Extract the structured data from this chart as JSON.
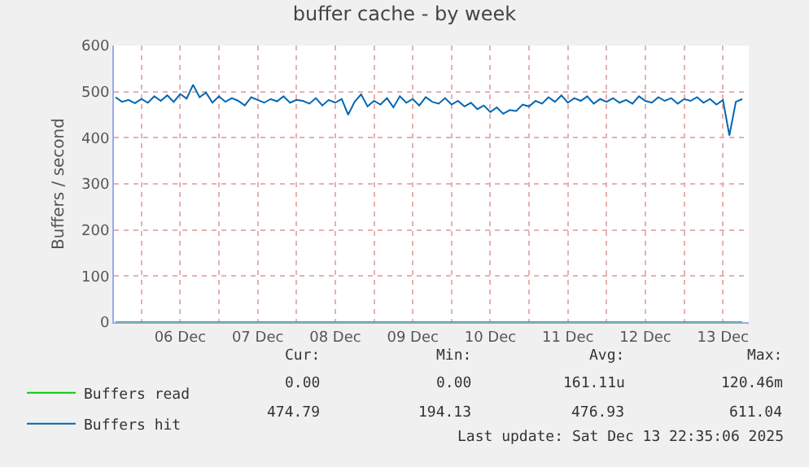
{
  "chart_data": {
    "type": "line",
    "title": "buffer cache - by week",
    "ylabel": "Buffers / second",
    "xlim": [
      "2025-12-05T15:30",
      "2025-12-13T20:00"
    ],
    "xticks": [
      {
        "value": "2025-12-06",
        "label": null
      },
      {
        "value": "2025-12-06T12:00",
        "label": "06 Dec"
      },
      {
        "value": "2025-12-07",
        "label": null
      },
      {
        "value": "2025-12-07T12:00",
        "label": "07 Dec"
      },
      {
        "value": "2025-12-08",
        "label": null
      },
      {
        "value": "2025-12-08T12:00",
        "label": "08 Dec"
      },
      {
        "value": "2025-12-09",
        "label": null
      },
      {
        "value": "2025-12-09T12:00",
        "label": "09 Dec"
      },
      {
        "value": "2025-12-10",
        "label": null
      },
      {
        "value": "2025-12-10T12:00",
        "label": "10 Dec"
      },
      {
        "value": "2025-12-11",
        "label": null
      },
      {
        "value": "2025-12-11T12:00",
        "label": "11 Dec"
      },
      {
        "value": "2025-12-12",
        "label": null
      },
      {
        "value": "2025-12-12T12:00",
        "label": "12 Dec"
      },
      {
        "value": "2025-12-13",
        "label": null
      },
      {
        "value": "2025-12-13T12:00",
        "label": "13 Dec"
      }
    ],
    "ylim": [
      0,
      600
    ],
    "yticks": [
      0,
      100,
      200,
      300,
      400,
      500,
      600
    ],
    "grid": true,
    "legend": "bottom left",
    "line_style": "solid",
    "marker": "none",
    "series": [
      {
        "name": "Buffers read",
        "color": "#00cc00",
        "x": [
          "2025-12-05T16:00",
          "2025-12-13T18:00"
        ],
        "values": [
          0,
          0
        ]
      },
      {
        "name": "Buffers hit",
        "color": "#0066b3",
        "x": [
          "2025-12-05T16:00",
          "2025-12-05T18:00",
          "2025-12-05T20:00",
          "2025-12-05T22:00",
          "2025-12-06T00:00",
          "2025-12-06T02:00",
          "2025-12-06T04:00",
          "2025-12-06T06:00",
          "2025-12-06T08:00",
          "2025-12-06T10:00",
          "2025-12-06T12:00",
          "2025-12-06T14:00",
          "2025-12-06T16:00",
          "2025-12-06T18:00",
          "2025-12-06T20:00",
          "2025-12-06T22:00",
          "2025-12-07T00:00",
          "2025-12-07T02:00",
          "2025-12-07T04:00",
          "2025-12-07T06:00",
          "2025-12-07T08:00",
          "2025-12-07T10:00",
          "2025-12-07T12:00",
          "2025-12-07T14:00",
          "2025-12-07T16:00",
          "2025-12-07T18:00",
          "2025-12-07T20:00",
          "2025-12-07T22:00",
          "2025-12-08T00:00",
          "2025-12-08T02:00",
          "2025-12-08T04:00",
          "2025-12-08T06:00",
          "2025-12-08T08:00",
          "2025-12-08T10:00",
          "2025-12-08T12:00",
          "2025-12-08T14:00",
          "2025-12-08T16:00",
          "2025-12-08T18:00",
          "2025-12-08T20:00",
          "2025-12-08T22:00",
          "2025-12-09T00:00",
          "2025-12-09T02:00",
          "2025-12-09T04:00",
          "2025-12-09T06:00",
          "2025-12-09T08:00",
          "2025-12-09T10:00",
          "2025-12-09T12:00",
          "2025-12-09T14:00",
          "2025-12-09T16:00",
          "2025-12-09T18:00",
          "2025-12-09T20:00",
          "2025-12-09T22:00",
          "2025-12-10T00:00",
          "2025-12-10T02:00",
          "2025-12-10T04:00",
          "2025-12-10T06:00",
          "2025-12-10T08:00",
          "2025-12-10T10:00",
          "2025-12-10T12:00",
          "2025-12-10T14:00",
          "2025-12-10T16:00",
          "2025-12-10T18:00",
          "2025-12-10T20:00",
          "2025-12-10T22:00",
          "2025-12-11T00:00",
          "2025-12-11T02:00",
          "2025-12-11T04:00",
          "2025-12-11T06:00",
          "2025-12-11T08:00",
          "2025-12-11T10:00",
          "2025-12-11T12:00",
          "2025-12-11T14:00",
          "2025-12-11T16:00",
          "2025-12-11T18:00",
          "2025-12-11T20:00",
          "2025-12-11T22:00",
          "2025-12-12T00:00",
          "2025-12-12T02:00",
          "2025-12-12T04:00",
          "2025-12-12T06:00",
          "2025-12-12T08:00",
          "2025-12-12T10:00",
          "2025-12-12T12:00",
          "2025-12-12T14:00",
          "2025-12-12T16:00",
          "2025-12-12T18:00",
          "2025-12-12T20:00",
          "2025-12-12T22:00",
          "2025-12-13T00:00",
          "2025-12-13T02:00",
          "2025-12-13T04:00",
          "2025-12-13T06:00",
          "2025-12-13T08:00",
          "2025-12-13T10:00",
          "2025-12-13T12:00",
          "2025-12-13T14:00",
          "2025-12-13T16:00",
          "2025-12-13T18:00"
        ],
        "values": [
          488,
          478,
          482,
          475,
          484,
          476,
          490,
          480,
          492,
          478,
          495,
          485,
          515,
          488,
          498,
          476,
          490,
          478,
          486,
          480,
          470,
          488,
          482,
          476,
          484,
          479,
          490,
          476,
          482,
          480,
          474,
          486,
          470,
          482,
          476,
          484,
          450,
          478,
          494,
          468,
          480,
          472,
          486,
          466,
          490,
          476,
          484,
          470,
          488,
          478,
          474,
          486,
          472,
          480,
          468,
          476,
          462,
          470,
          456,
          466,
          452,
          460,
          458,
          472,
          468,
          480,
          474,
          488,
          478,
          492,
          476,
          486,
          480,
          490,
          474,
          484,
          478,
          486,
          476,
          482,
          474,
          490,
          480,
          476,
          488,
          480,
          486,
          474,
          484,
          480,
          488,
          476,
          484,
          472,
          482,
          405,
          478,
          484
        ]
      }
    ],
    "annotations": [
      "Cur:",
      "Min:",
      "Avg:",
      "Max:",
      "0.00",
      "0.00",
      "161.11u",
      "120.46m",
      "474.79",
      "194.13",
      "476.93",
      "611.04",
      "Last update: Sat Dec 13 22:35:06 2025"
    ]
  }
}
